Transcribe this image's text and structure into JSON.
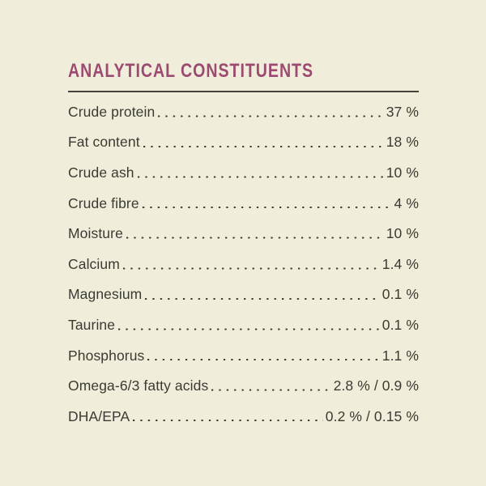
{
  "panel": {
    "heading": "ANALYTICAL CONSTITUENTS",
    "colors": {
      "background": "#f0eedb",
      "heading": "#9c4a72",
      "rule": "#45443c",
      "text": "#3b3a32"
    },
    "rows": [
      {
        "label": "Crude protein",
        "value": "37 %"
      },
      {
        "label": "Fat content",
        "value": "18 %"
      },
      {
        "label": "Crude ash",
        "value": "10 %"
      },
      {
        "label": "Crude fibre",
        "value": "4 %"
      },
      {
        "label": "Moisture",
        "value": "10 %"
      },
      {
        "label": "Calcium",
        "value": "1.4 %"
      },
      {
        "label": "Magnesium",
        "value": "0.1 %"
      },
      {
        "label": "Taurine",
        "value": "0.1 %"
      },
      {
        "label": "Phosphorus",
        "value": "1.1 %"
      },
      {
        "label": "Omega-6/3 fatty acids",
        "value": "2.8 % / 0.9 %"
      },
      {
        "label": "DHA/EPA",
        "value": "0.2 % / 0.15 %"
      }
    ]
  }
}
